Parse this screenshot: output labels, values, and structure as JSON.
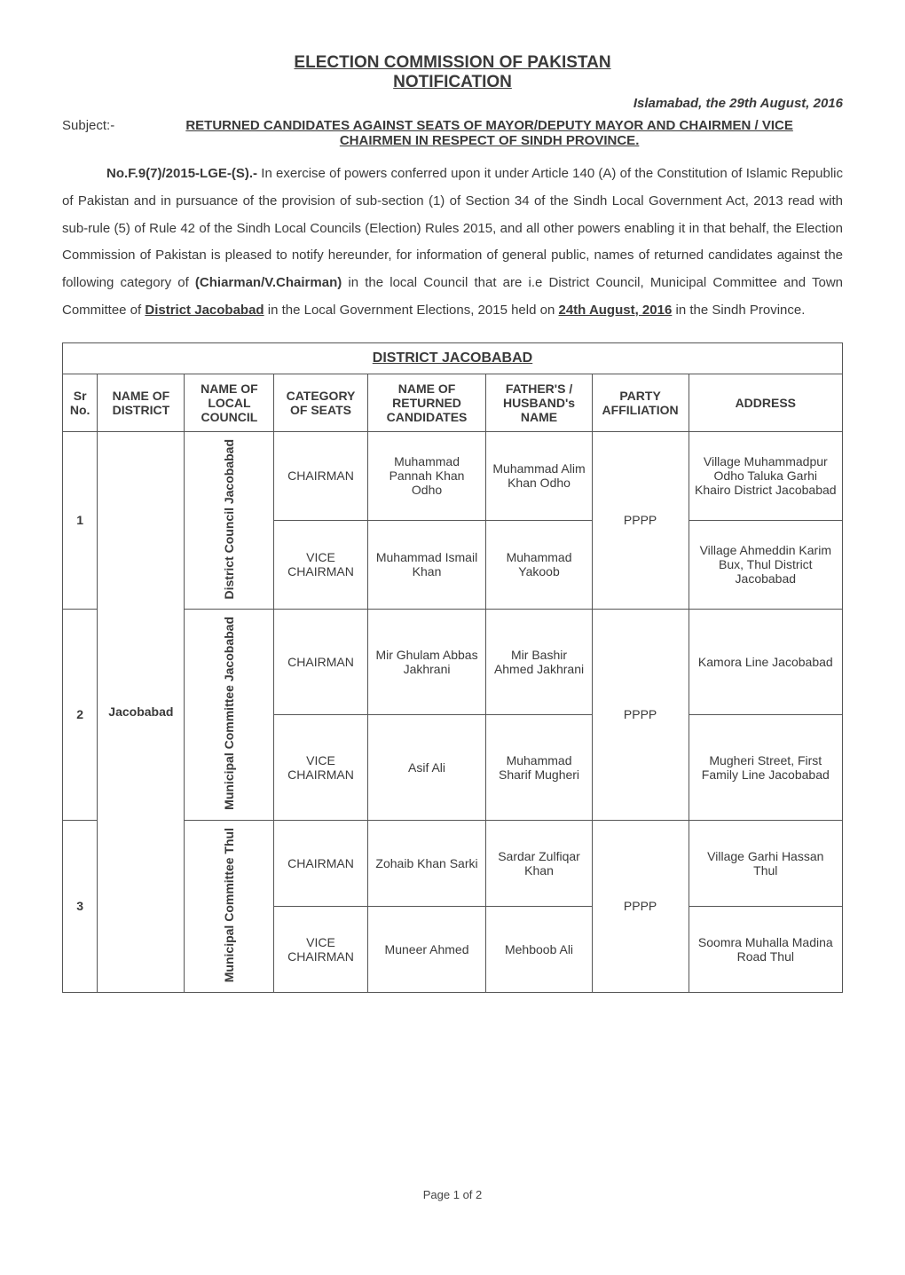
{
  "header": {
    "title_line1": "ELECTION COMMISSION OF PAKISTAN",
    "title_line2": "NOTIFICATION",
    "date_line": "Islamabad, the  29th August, 2016",
    "subject_label": "Subject:-",
    "subject_text_l1": "RETURNED CANDIDATES AGAINST SEATS OF MAYOR/DEPUTY MAYOR AND CHAIRMEN / VICE",
    "subject_text_l2": "CHAIRMEN IN RESPECT OF SINDH PROVINCE."
  },
  "body": {
    "ref_no": "No.F.9(7)/2015-LGE-(S).-",
    "p1": "In exercise of powers conferred upon it under Article 140 (A) of the Constitution of Islamic Republic of Pakistan and in pursuance of the provision of sub-section (1) of Section 34 of the Sindh  Local Government Act, 2013 read with  sub-rule (5) of Rule 42 of the  Sindh Local Councils (Election) Rules 2015, and all other powers enabling it  in that behalf, the Election Commission of Pakistan is pleased to notify hereunder, for information of general public, names of returned candidates against the following  category of ",
    "cat_bold": "(Chiarman/V.Chairman)",
    "p2": " in the local Council that are i.e District Council, Municipal Committee and Town Committee of ",
    "district_u": "District Jacobabad",
    "p3": " in the Local Government Elections, 2015 held on ",
    "date_u": "24th August, 2016",
    "p4": "  in the Sindh Province."
  },
  "table": {
    "title": "DISTRICT JACOBABAD",
    "columns": {
      "c1": "Sr No.",
      "c2": "NAME OF DISTRICT",
      "c3": "NAME OF LOCAL COUNCIL",
      "c4": "CATEGORY OF SEATS",
      "c5": "NAME OF RETURNED CANDIDATES",
      "c6": "FATHER'S / HUSBAND's NAME",
      "c7": "PARTY AFFILIATION",
      "c8": "ADDRESS"
    },
    "district_name": "Jacobabad",
    "groups": [
      {
        "sr": "1",
        "council": "District Council Jacobabad",
        "party": "PPPP",
        "rows": [
          {
            "cat": "CHAIRMAN",
            "candidate": "Muhammad Pannah Khan Odho",
            "father": "Muhammad Alim Khan Odho",
            "address": "Village Muhammadpur Odho Taluka Garhi Khairo District Jacobabad"
          },
          {
            "cat": "VICE CHAIRMAN",
            "candidate": "Muhammad Ismail Khan",
            "father": "Muhammad Yakoob",
            "address": "Village Ahmeddin Karim Bux, Thul District Jacobabad"
          }
        ]
      },
      {
        "sr": "2",
        "council": "Municipal Committee Jacobabad",
        "party": "PPPP",
        "rows": [
          {
            "cat": "CHAIRMAN",
            "candidate": "Mir Ghulam Abbas Jakhrani",
            "father": "Mir Bashir Ahmed Jakhrani",
            "address": "Kamora Line Jacobabad"
          },
          {
            "cat": "VICE CHAIRMAN",
            "candidate": "Asif Ali",
            "father": "Muhammad Sharif Mugheri",
            "address": "Mugheri Street, First Family Line Jacobabad"
          }
        ]
      },
      {
        "sr": "3",
        "council": "Municipal Committee Thul",
        "party": "PPPP",
        "rows": [
          {
            "cat": "CHAIRMAN",
            "candidate": "Zohaib Khan Sarki",
            "father": "Sardar Zulfiqar Khan",
            "address": "Village Garhi Hassan Thul"
          },
          {
            "cat": "VICE CHAIRMAN",
            "candidate": "Muneer Ahmed",
            "father": "Mehboob Ali",
            "address": "Soomra Muhalla Madina Road Thul"
          }
        ]
      }
    ],
    "col_widths": [
      "40px",
      "110px",
      "60px",
      "110px",
      "140px",
      "130px",
      "120px",
      "170px"
    ]
  },
  "footer": "Page 1 of 2",
  "colors": {
    "text": "#3a3a3a",
    "border": "#555555",
    "background": "#ffffff"
  }
}
